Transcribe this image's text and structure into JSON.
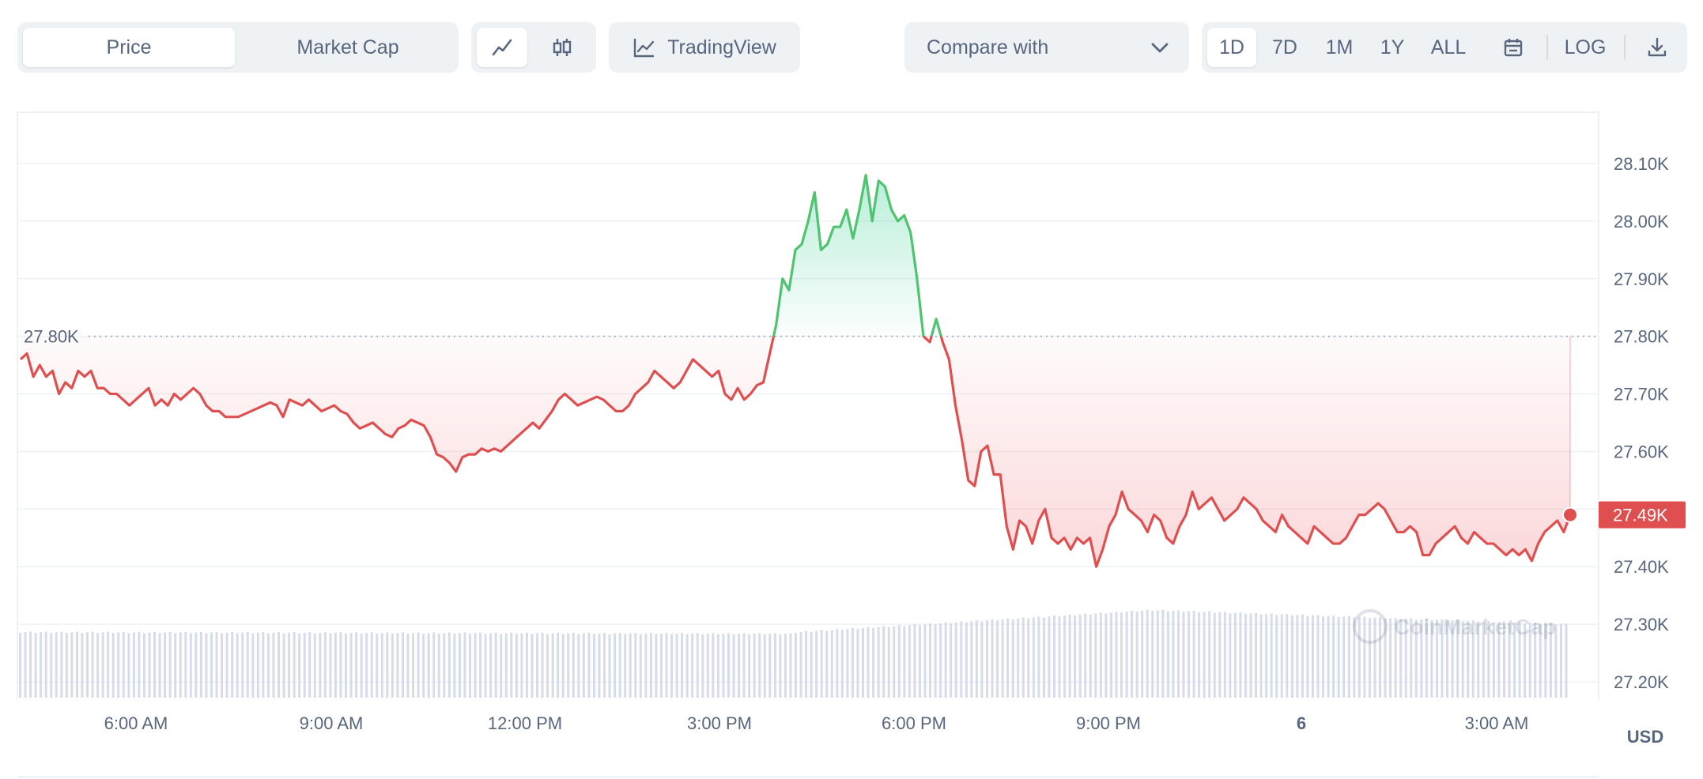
{
  "toolbar": {
    "view_toggle": [
      "Price",
      "Market Cap"
    ],
    "active_view": "Price",
    "chart_types": [
      "line-chart-icon",
      "candlestick-icon"
    ],
    "tradingview": {
      "icon": "tradingview-chart-icon",
      "label": "TradingView"
    },
    "compare": {
      "label": "Compare with",
      "icon": "chevron-down-icon"
    },
    "ranges": [
      "1D",
      "7D",
      "1M",
      "1Y",
      "ALL"
    ],
    "active_range": "1D",
    "calendar_icon": "calendar-icon",
    "log_label": "LOG",
    "download_icon": "download-icon"
  },
  "colors": {
    "up": "#16c784",
    "up_line": "#4fc36f",
    "down": "#ea3943",
    "down_line": "#e04f4f",
    "grid": "#eff2f5",
    "volume": "#cfd6e4",
    "text": "#58667e"
  },
  "chart_data": {
    "type": "line",
    "currency": "USD",
    "y_ticks": [
      "28.10K",
      "28.00K",
      "27.90K",
      "27.80K",
      "27.70K",
      "27.60K",
      "27.50K",
      "27.40K",
      "27.30K",
      "27.20K"
    ],
    "x_ticks": [
      "6:00 AM",
      "9:00 AM",
      "12:00 PM",
      "3:00 PM",
      "6:00 PM",
      "9:00 PM",
      "6",
      "3:00 AM"
    ],
    "ylim": [
      27180,
      28190
    ],
    "reference_label": "27.80K",
    "reference_value": 27800,
    "current_label": "27.49K",
    "current_value": 27490,
    "watermark": "CoinMarketCap",
    "series": [
      {
        "values": [
          27760,
          27770,
          27730,
          27750,
          27730,
          27740,
          27700,
          27720,
          27710,
          27740,
          27730,
          27740,
          27710,
          27710,
          27700,
          27700,
          27690,
          27680,
          27690,
          27700,
          27710,
          27680,
          27690,
          27680,
          27700,
          27690,
          27700,
          27710,
          27700,
          27680,
          27670,
          27670,
          27660,
          27660,
          27660,
          27665,
          27670,
          27675,
          27680,
          27685,
          27680,
          27660,
          27690,
          27685,
          27680,
          27690,
          27680,
          27670,
          27675,
          27680,
          27670,
          27665,
          27650,
          27640,
          27645,
          27650,
          27640,
          27630,
          27625,
          27640,
          27645,
          27655,
          27650,
          27645,
          27625,
          27595,
          27590,
          27580,
          27565,
          27590,
          27595,
          27595,
          27605,
          27600,
          27605,
          27600,
          27610,
          27620,
          27630,
          27640,
          27650,
          27640,
          27655,
          27670,
          27690,
          27700,
          27690,
          27680,
          27685,
          27690,
          27695,
          27690,
          27680,
          27670,
          27670,
          27680,
          27700,
          27710,
          27720,
          27740,
          27730,
          27720,
          27710,
          27720,
          27740,
          27760,
          27750,
          27740,
          27730,
          27740,
          27700,
          27690,
          27710,
          27690,
          27700,
          27715,
          27720,
          27770,
          27820,
          27900,
          27880,
          27950,
          27960,
          28000,
          28050,
          27950,
          27960,
          27990,
          27990,
          28020,
          27970,
          28020,
          28080,
          28000,
          28070,
          28060,
          28020,
          28000,
          28010,
          27980,
          27900,
          27800,
          27790,
          27830,
          27790,
          27760,
          27680,
          27620,
          27550,
          27540,
          27600,
          27610,
          27560,
          27560,
          27470,
          27430,
          27480,
          27470,
          27440,
          27480,
          27500,
          27450,
          27440,
          27450,
          27430,
          27450,
          27440,
          27450,
          27400,
          27430,
          27470,
          27490,
          27530,
          27500,
          27490,
          27480,
          27460,
          27490,
          27480,
          27450,
          27440,
          27470,
          27490,
          27530,
          27500,
          27510,
          27520,
          27500,
          27480,
          27490,
          27500,
          27520,
          27510,
          27500,
          27480,
          27470,
          27460,
          27490,
          27470,
          27460,
          27450,
          27440,
          27470,
          27460,
          27450,
          27440,
          27440,
          27450,
          27470,
          27490,
          27490,
          27500,
          27510,
          27500,
          27480,
          27460,
          27460,
          27470,
          27460,
          27420,
          27420,
          27440,
          27450,
          27460,
          27470,
          27450,
          27440,
          27460,
          27450,
          27440,
          27440,
          27430,
          27420,
          27430,
          27420,
          27430,
          27410,
          27440,
          27460,
          27470,
          27480,
          27460,
          27490
        ]
      }
    ]
  }
}
